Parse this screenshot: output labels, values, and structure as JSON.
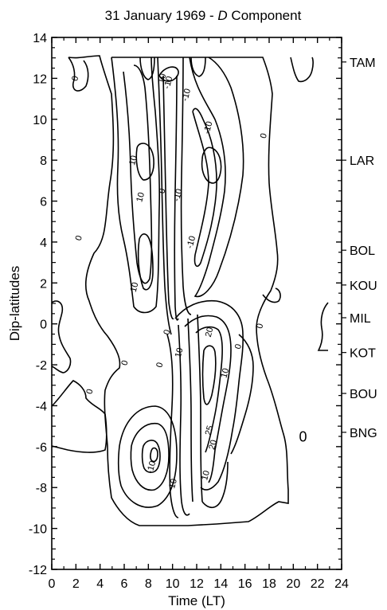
{
  "chart_data": {
    "type": "contour",
    "title_prefix": "31 January 1969 - ",
    "title_italic": "D",
    "title_suffix": " Component",
    "xlabel": "Time (LT)",
    "ylabel": "Dip-latitudes",
    "xlim": [
      0,
      24
    ],
    "ylim": [
      -12,
      14
    ],
    "x_ticks": [
      "0",
      "2",
      "4",
      "6",
      "8",
      "10",
      "12",
      "14",
      "16",
      "18",
      "20",
      "22",
      "24"
    ],
    "y_ticks": [
      "-12",
      "-10",
      "-8",
      "-6",
      "-4",
      "-2",
      "0",
      "2",
      "4",
      "6",
      "8",
      "10",
      "12",
      "14"
    ],
    "stations": [
      {
        "name": "TAM",
        "lat": 12.8
      },
      {
        "name": "LAR",
        "lat": 8.0
      },
      {
        "name": "BOL",
        "lat": 3.6
      },
      {
        "name": "KOU",
        "lat": 1.9
      },
      {
        "name": "MIL",
        "lat": 0.3
      },
      {
        "name": "KOT",
        "lat": -1.4
      },
      {
        "name": "BOU",
        "lat": -3.4
      },
      {
        "name": "BNG",
        "lat": -5.3
      }
    ],
    "contour_labels": [
      {
        "text": "0",
        "x": 1.9,
        "y": 12.0
      },
      {
        "text": "-10",
        "x": 9.6,
        "y": 11.8
      },
      {
        "text": "10",
        "x": 9.1,
        "y": 12.0
      },
      {
        "text": "-10",
        "x": 11.1,
        "y": 11.2
      },
      {
        "text": "-10",
        "x": 12.9,
        "y": 9.6
      },
      {
        "text": "0",
        "x": 17.5,
        "y": 9.2
      },
      {
        "text": "10",
        "x": 6.7,
        "y": 8.0
      },
      {
        "text": "10",
        "x": 7.3,
        "y": 6.2
      },
      {
        "text": "0",
        "x": 9.1,
        "y": 6.5
      },
      {
        "text": "-10",
        "x": 10.4,
        "y": 6.3
      },
      {
        "text": "-10",
        "x": 11.5,
        "y": 4.0
      },
      {
        "text": "0",
        "x": 2.2,
        "y": 4.2
      },
      {
        "text": "10",
        "x": 6.8,
        "y": 1.8
      },
      {
        "text": "0",
        "x": 9.5,
        "y": -0.4
      },
      {
        "text": "20",
        "x": 13.0,
        "y": -0.4
      },
      {
        "text": "10",
        "x": 10.5,
        "y": -1.4
      },
      {
        "text": "0",
        "x": 15.4,
        "y": -1.1
      },
      {
        "text": "0",
        "x": 17.2,
        "y": -0.1
      },
      {
        "text": "0",
        "x": 6.0,
        "y": -1.9
      },
      {
        "text": "0",
        "x": 8.9,
        "y": -2.0
      },
      {
        "text": "10",
        "x": 14.3,
        "y": -2.4
      },
      {
        "text": "0",
        "x": 3.1,
        "y": -3.3
      },
      {
        "text": "25",
        "x": 13.0,
        "y": -5.2
      },
      {
        "text": "20",
        "x": 13.3,
        "y": -5.9
      },
      {
        "text": "-10",
        "x": 8.2,
        "y": -7.0
      },
      {
        "text": "10",
        "x": 10.0,
        "y": -7.8
      },
      {
        "text": "10",
        "x": 12.7,
        "y": -7.4
      },
      {
        "text": "0",
        "x": 20.8,
        "y": -5.6
      }
    ],
    "grid": false
  }
}
